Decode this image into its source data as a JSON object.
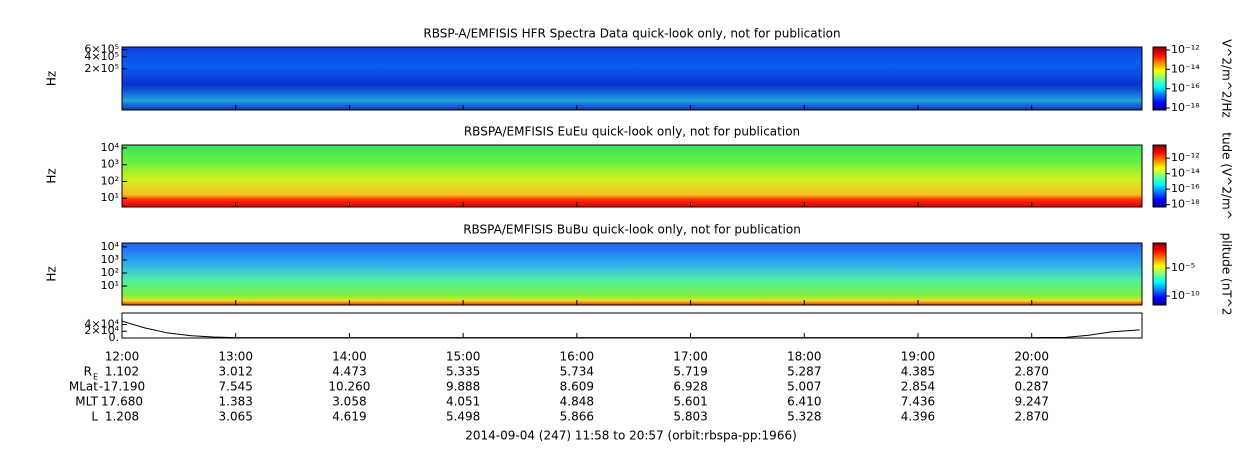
{
  "chart_data": [
    {
      "type": "spectrogram",
      "title": "RBSP-A/EMFISIS  HFR Spectra Data quick-look only, not for publication",
      "ylabel": "Hz",
      "log_y": true,
      "ylim": [
        19000,
        700000
      ],
      "yticks": [
        {
          "value": 600000,
          "label": "6×10⁵"
        },
        {
          "value": 400000,
          "label": "4×10⁵"
        },
        {
          "value": 200000,
          "label": "2×10⁵"
        }
      ],
      "colorbar": {
        "label": "V^2/m^2/Hz",
        "clim": [
          6.3e-19,
          2e-12
        ],
        "ticks": [
          {
            "value": 1e-12,
            "label": "10⁻¹²"
          },
          {
            "value": 1e-14,
            "label": "10⁻¹⁴"
          },
          {
            "value": 1e-16,
            "label": "10⁻¹⁶"
          },
          {
            "value": 1e-18,
            "label": "10⁻¹⁸"
          }
        ]
      }
    },
    {
      "type": "spectrogram",
      "title": "RBSPA/EMFISIS  EuEu quick-look only, not for publication",
      "ylabel": "Hz",
      "log_y": true,
      "ylim": [
        3,
        15000
      ],
      "yticks": [
        {
          "value": 10000,
          "label": "10⁴"
        },
        {
          "value": 1000,
          "label": "10³"
        },
        {
          "value": 100,
          "label": "10²"
        },
        {
          "value": 10,
          "label": "10¹"
        }
      ],
      "colorbar": {
        "label": "tude (V^2/m^",
        "clim": [
          5e-19,
          5e-11
        ],
        "ticks": [
          {
            "value": 1e-12,
            "label": "10⁻¹²"
          },
          {
            "value": 1e-14,
            "label": "10⁻¹⁴"
          },
          {
            "value": 1e-16,
            "label": "10⁻¹⁶"
          },
          {
            "value": 1e-18,
            "label": "10⁻¹⁸"
          }
        ]
      }
    },
    {
      "type": "spectrogram",
      "title": "RBSPA/EMFISIS  BuBu quick-look only, not for publication",
      "ylabel": "Hz",
      "log_y": true,
      "ylim": [
        0.35,
        20000
      ],
      "yticks": [
        {
          "value": 10000,
          "label": "10⁴"
        },
        {
          "value": 1000,
          "label": "10³"
        },
        {
          "value": 100,
          "label": "10²"
        },
        {
          "value": 10,
          "label": "10¹"
        }
      ],
      "colorbar": {
        "label": "plitude (nT^2",
        "clim": [
          2.5e-12,
          0.3
        ],
        "ticks": [
          {
            "value": 1e-05,
            "label": "10⁻⁵"
          },
          {
            "value": 1e-10,
            "label": "10⁻¹⁰"
          }
        ]
      }
    },
    {
      "type": "line",
      "ylim": [
        0,
        74000
      ],
      "yticks": [
        {
          "value": 40000,
          "label": "4×10⁴"
        },
        {
          "value": 20000,
          "label": "2×10⁴"
        },
        {
          "value": 0,
          "label": "0."
        }
      ],
      "xlim": [
        12,
        20.97
      ],
      "xticks": [
        {
          "value": 12,
          "label": "12:00"
        },
        {
          "value": 13,
          "label": "13:00"
        },
        {
          "value": 14,
          "label": "14:00"
        },
        {
          "value": 15,
          "label": "15:00"
        },
        {
          "value": 16,
          "label": "16:00"
        },
        {
          "value": 17,
          "label": "17:00"
        },
        {
          "value": 18,
          "label": "18:00"
        },
        {
          "value": 19,
          "label": "19:00"
        },
        {
          "value": 20,
          "label": "20:00"
        }
      ],
      "x": [
        12.0,
        12.2,
        12.4,
        12.6,
        12.8,
        13.0,
        20.0,
        20.3,
        20.5,
        20.7,
        20.95
      ],
      "values": [
        50000,
        30000,
        15000,
        7000,
        3000,
        1000,
        1000,
        2000,
        8000,
        18000,
        24000
      ],
      "color": "#000000"
    }
  ],
  "ephemeris": {
    "rows": [
      {
        "label": "R",
        "sub": "E",
        "values": [
          "1.102",
          "3.012",
          "4.473",
          "5.335",
          "5.734",
          "5.719",
          "5.287",
          "4.385",
          "2.870"
        ]
      },
      {
        "label": "MLat",
        "values": [
          "-17.190",
          "7.545",
          "10.260",
          "9.888",
          "8.609",
          "6.928",
          "5.007",
          "2.854",
          "0.287"
        ]
      },
      {
        "label": "MLT",
        "values": [
          "17.680",
          "1.383",
          "3.058",
          "4.051",
          "4.848",
          "5.601",
          "6.410",
          "7.436",
          "9.247"
        ]
      },
      {
        "label": "L",
        "values": [
          "1.208",
          "3.065",
          "4.619",
          "5.498",
          "5.866",
          "5.803",
          "5.328",
          "4.396",
          "2.870"
        ]
      }
    ]
  },
  "footer": "2014-09-04 (247) 11:58 to 20:57 (orbit:rbspa-pp:1966)"
}
